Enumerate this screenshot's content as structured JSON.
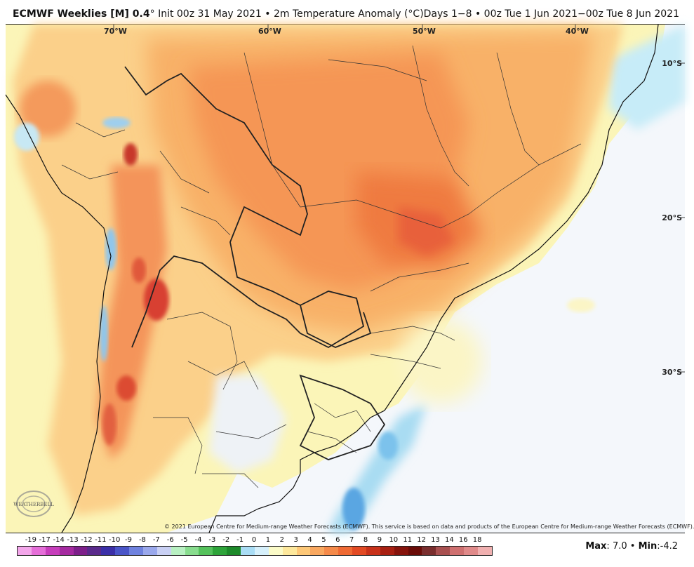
{
  "header": {
    "product": "ECMWF Weeklies [M] 0.4",
    "degree": "°",
    "init": "Init 00z 31 May 2021",
    "variable": "2m Temperature Anomaly (°C)",
    "valid": "Days 1−8 • 00z Tue 1 Jun 2021−00z Tue 8 Jun 2021"
  },
  "map": {
    "longitudes": [
      "70°W",
      "60°W",
      "50°W",
      "40°W"
    ],
    "latitudes": [
      "10°S",
      "20°S",
      "30°S"
    ],
    "copyright": "© 2021 European Centre for Medium-range Weather Forecasts (ECMWF). This service is based on data and products of the European Centre for Medium-range Weather Forecasts (ECMWF).",
    "logo_text": "WEATHERBELL"
  },
  "legend": {
    "ticks": [
      "-19",
      "-17",
      "-14",
      "-13",
      "-12",
      "-11",
      "-10",
      "-9",
      "-8",
      "-7",
      "-6",
      "-5",
      "-4",
      "-3",
      "-2",
      "-1",
      "0",
      "1",
      "2",
      "3",
      "4",
      "5",
      "6",
      "7",
      "8",
      "9",
      "10",
      "11",
      "12",
      "13",
      "14",
      "16",
      "18"
    ],
    "colors": [
      "#f3a6ea",
      "#e56ed8",
      "#c63dbb",
      "#a52aa0",
      "#7d1f8a",
      "#5a2a8c",
      "#3b2fa8",
      "#4a55c8",
      "#6f82df",
      "#9aa8ec",
      "#c9d0f4",
      "#b8f0c2",
      "#88dc8e",
      "#55c25c",
      "#2ea43a",
      "#1d8a2a",
      "#a9ddf5",
      "#d6f0fb",
      "#fbfbc8",
      "#fde89c",
      "#fdc878",
      "#f9a860",
      "#f58a4a",
      "#ef6a34",
      "#e24a24",
      "#c8321a",
      "#a82012",
      "#86140c",
      "#6a0c08",
      "#7a2e2e",
      "#a85050",
      "#cf7070",
      "#e08a8a",
      "#f0b0b0"
    ],
    "max_label": "Max",
    "max_value": "7.0",
    "min_label": "Min",
    "min_value": "-4.2",
    "separator": "•"
  }
}
